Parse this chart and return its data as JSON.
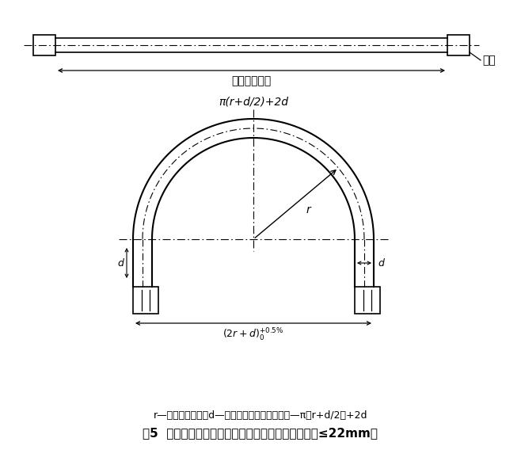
{
  "title_text": "图5  耐脉冲疲劳性试验软管及附件安装图（公称内径≤22mm）",
  "legend_text": "r—最小弯曲半径；d—软管外径；软管暴露长度—π（r+d/2）+2d",
  "top_exposure_label": "软管暴露长度",
  "top_connector_label": "接头",
  "arc_top_label": "π(r+d/2)+2d",
  "bg_color": "#ffffff",
  "line_color": "#000000"
}
